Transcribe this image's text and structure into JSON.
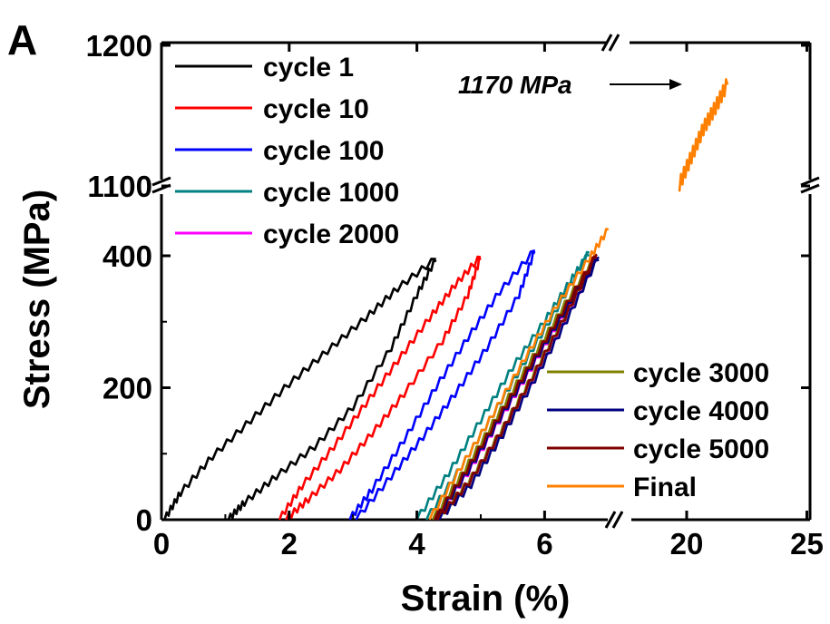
{
  "chart_data": {
    "type": "line",
    "panel_label": "A",
    "xlabel": "Strain (%)",
    "ylabel": "Stress (MPa)",
    "x_axis": {
      "segments": [
        {
          "range": [
            0,
            7
          ],
          "ticks": [
            "0",
            "2",
            "4",
            "6"
          ],
          "tick_values": [
            0,
            2,
            4,
            6
          ]
        },
        {
          "range": [
            18,
            25
          ],
          "ticks": [
            "20",
            "25"
          ],
          "tick_values": [
            20,
            25
          ]
        }
      ],
      "break": true
    },
    "y_axis": {
      "segments": [
        {
          "range": [
            0,
            400
          ],
          "ticks": [
            "0",
            "200",
            "400"
          ],
          "tick_values": [
            0,
            200,
            400
          ]
        },
        {
          "range": [
            1100,
            1200
          ],
          "ticks": [
            "1100",
            "1200"
          ],
          "tick_values": [
            1100,
            1200
          ]
        }
      ],
      "break": true
    },
    "annotation": {
      "text": "1170 MPa",
      "x": 21.5,
      "y": 1170
    },
    "legend_top_left": [
      "cycle 1",
      "cycle 10",
      "cycle 100",
      "cycle 1000",
      "cycle 2000"
    ],
    "legend_bottom_right": [
      "cycle 3000",
      "cycle 4000",
      "cycle 5000",
      "Final"
    ],
    "series": [
      {
        "name": "cycle 1",
        "color": "#000000",
        "loading": [
          [
            0.05,
            0
          ],
          [
            0.3,
            40
          ],
          [
            0.8,
            95
          ],
          [
            1.4,
            150
          ],
          [
            2.0,
            205
          ],
          [
            2.6,
            255
          ],
          [
            3.2,
            305
          ],
          [
            3.7,
            350
          ],
          [
            4.3,
            395
          ]
        ],
        "unloading": [
          [
            4.3,
            395
          ],
          [
            4.0,
            340
          ],
          [
            3.6,
            260
          ],
          [
            3.0,
            170
          ],
          [
            2.4,
            110
          ],
          [
            1.8,
            65
          ],
          [
            1.3,
            25
          ],
          [
            1.05,
            0
          ]
        ]
      },
      {
        "name": "cycle 10",
        "color": "#ff0000",
        "loading": [
          [
            1.85,
            0
          ],
          [
            2.2,
            50
          ],
          [
            2.7,
            110
          ],
          [
            3.2,
            175
          ],
          [
            3.7,
            240
          ],
          [
            4.2,
            305
          ],
          [
            4.6,
            355
          ],
          [
            5.0,
            398
          ]
        ],
        "unloading": [
          [
            5.0,
            398
          ],
          [
            4.8,
            340
          ],
          [
            4.4,
            270
          ],
          [
            3.8,
            190
          ],
          [
            3.3,
            130
          ],
          [
            2.8,
            75
          ],
          [
            2.3,
            30
          ],
          [
            1.95,
            0
          ]
        ]
      },
      {
        "name": "cycle 100",
        "color": "#0000ff",
        "loading": [
          [
            2.95,
            0
          ],
          [
            3.3,
            45
          ],
          [
            3.8,
            120
          ],
          [
            4.3,
            200
          ],
          [
            4.8,
            275
          ],
          [
            5.3,
            345
          ],
          [
            5.85,
            408
          ]
        ],
        "unloading": [
          [
            5.85,
            408
          ],
          [
            5.6,
            340
          ],
          [
            5.1,
            260
          ],
          [
            4.6,
            190
          ],
          [
            4.1,
            125
          ],
          [
            3.6,
            65
          ],
          [
            3.05,
            0
          ]
        ]
      },
      {
        "name": "cycle 1000",
        "color": "#008080",
        "loading": [
          [
            4.0,
            0
          ],
          [
            4.5,
            70
          ],
          [
            5.0,
            150
          ],
          [
            5.5,
            230
          ],
          [
            6.0,
            300
          ],
          [
            6.4,
            360
          ],
          [
            6.7,
            405
          ]
        ],
        "unloading": [
          [
            6.7,
            405
          ],
          [
            6.2,
            320
          ],
          [
            5.7,
            240
          ],
          [
            5.2,
            160
          ],
          [
            4.7,
            80
          ],
          [
            4.15,
            0
          ]
        ]
      },
      {
        "name": "cycle 2000",
        "color": "#ff00ff",
        "loading": [
          [
            4.3,
            0
          ],
          [
            4.8,
            70
          ],
          [
            5.3,
            150
          ],
          [
            5.8,
            230
          ],
          [
            6.3,
            310
          ],
          [
            6.8,
            395
          ]
        ],
        "unloading": [
          [
            6.8,
            395
          ],
          [
            6.3,
            300
          ],
          [
            5.8,
            210
          ],
          [
            5.3,
            130
          ],
          [
            4.8,
            55
          ],
          [
            4.35,
            0
          ]
        ]
      },
      {
        "name": "cycle 3000",
        "color": "#808000",
        "loading": [
          [
            4.25,
            0
          ],
          [
            4.75,
            75
          ],
          [
            5.25,
            155
          ],
          [
            5.75,
            235
          ],
          [
            6.25,
            315
          ],
          [
            6.8,
            400
          ]
        ],
        "unloading": [
          [
            6.8,
            400
          ],
          [
            6.3,
            305
          ],
          [
            5.8,
            215
          ],
          [
            5.3,
            130
          ],
          [
            4.8,
            55
          ],
          [
            4.3,
            0
          ]
        ]
      },
      {
        "name": "cycle 4000",
        "color": "#000080",
        "loading": [
          [
            4.3,
            0
          ],
          [
            4.8,
            72
          ],
          [
            5.3,
            152
          ],
          [
            5.8,
            232
          ],
          [
            6.3,
            312
          ],
          [
            6.85,
            398
          ]
        ],
        "unloading": [
          [
            6.85,
            398
          ],
          [
            6.35,
            302
          ],
          [
            5.85,
            212
          ],
          [
            5.35,
            128
          ],
          [
            4.85,
            52
          ],
          [
            4.35,
            0
          ]
        ]
      },
      {
        "name": "cycle 5000",
        "color": "#800000",
        "loading": [
          [
            4.28,
            0
          ],
          [
            4.78,
            74
          ],
          [
            5.28,
            154
          ],
          [
            5.78,
            234
          ],
          [
            6.28,
            314
          ],
          [
            6.82,
            402
          ]
        ],
        "unloading": [
          [
            6.82,
            402
          ],
          [
            6.32,
            306
          ],
          [
            5.82,
            216
          ],
          [
            5.32,
            131
          ],
          [
            4.82,
            56
          ],
          [
            4.32,
            0
          ]
        ]
      },
      {
        "name": "Final",
        "color": "#ff8000",
        "loading": [
          [
            4.2,
            0
          ],
          [
            4.7,
            80
          ],
          [
            5.2,
            160
          ],
          [
            5.7,
            245
          ],
          [
            6.2,
            325
          ],
          [
            6.7,
            395
          ],
          [
            7.0,
            440
          ]
        ],
        "upper": [
          [
            19.7,
            1100
          ],
          [
            20.2,
            1120
          ],
          [
            20.7,
            1140
          ],
          [
            21.2,
            1155
          ],
          [
            21.7,
            1172
          ]
        ]
      }
    ]
  }
}
